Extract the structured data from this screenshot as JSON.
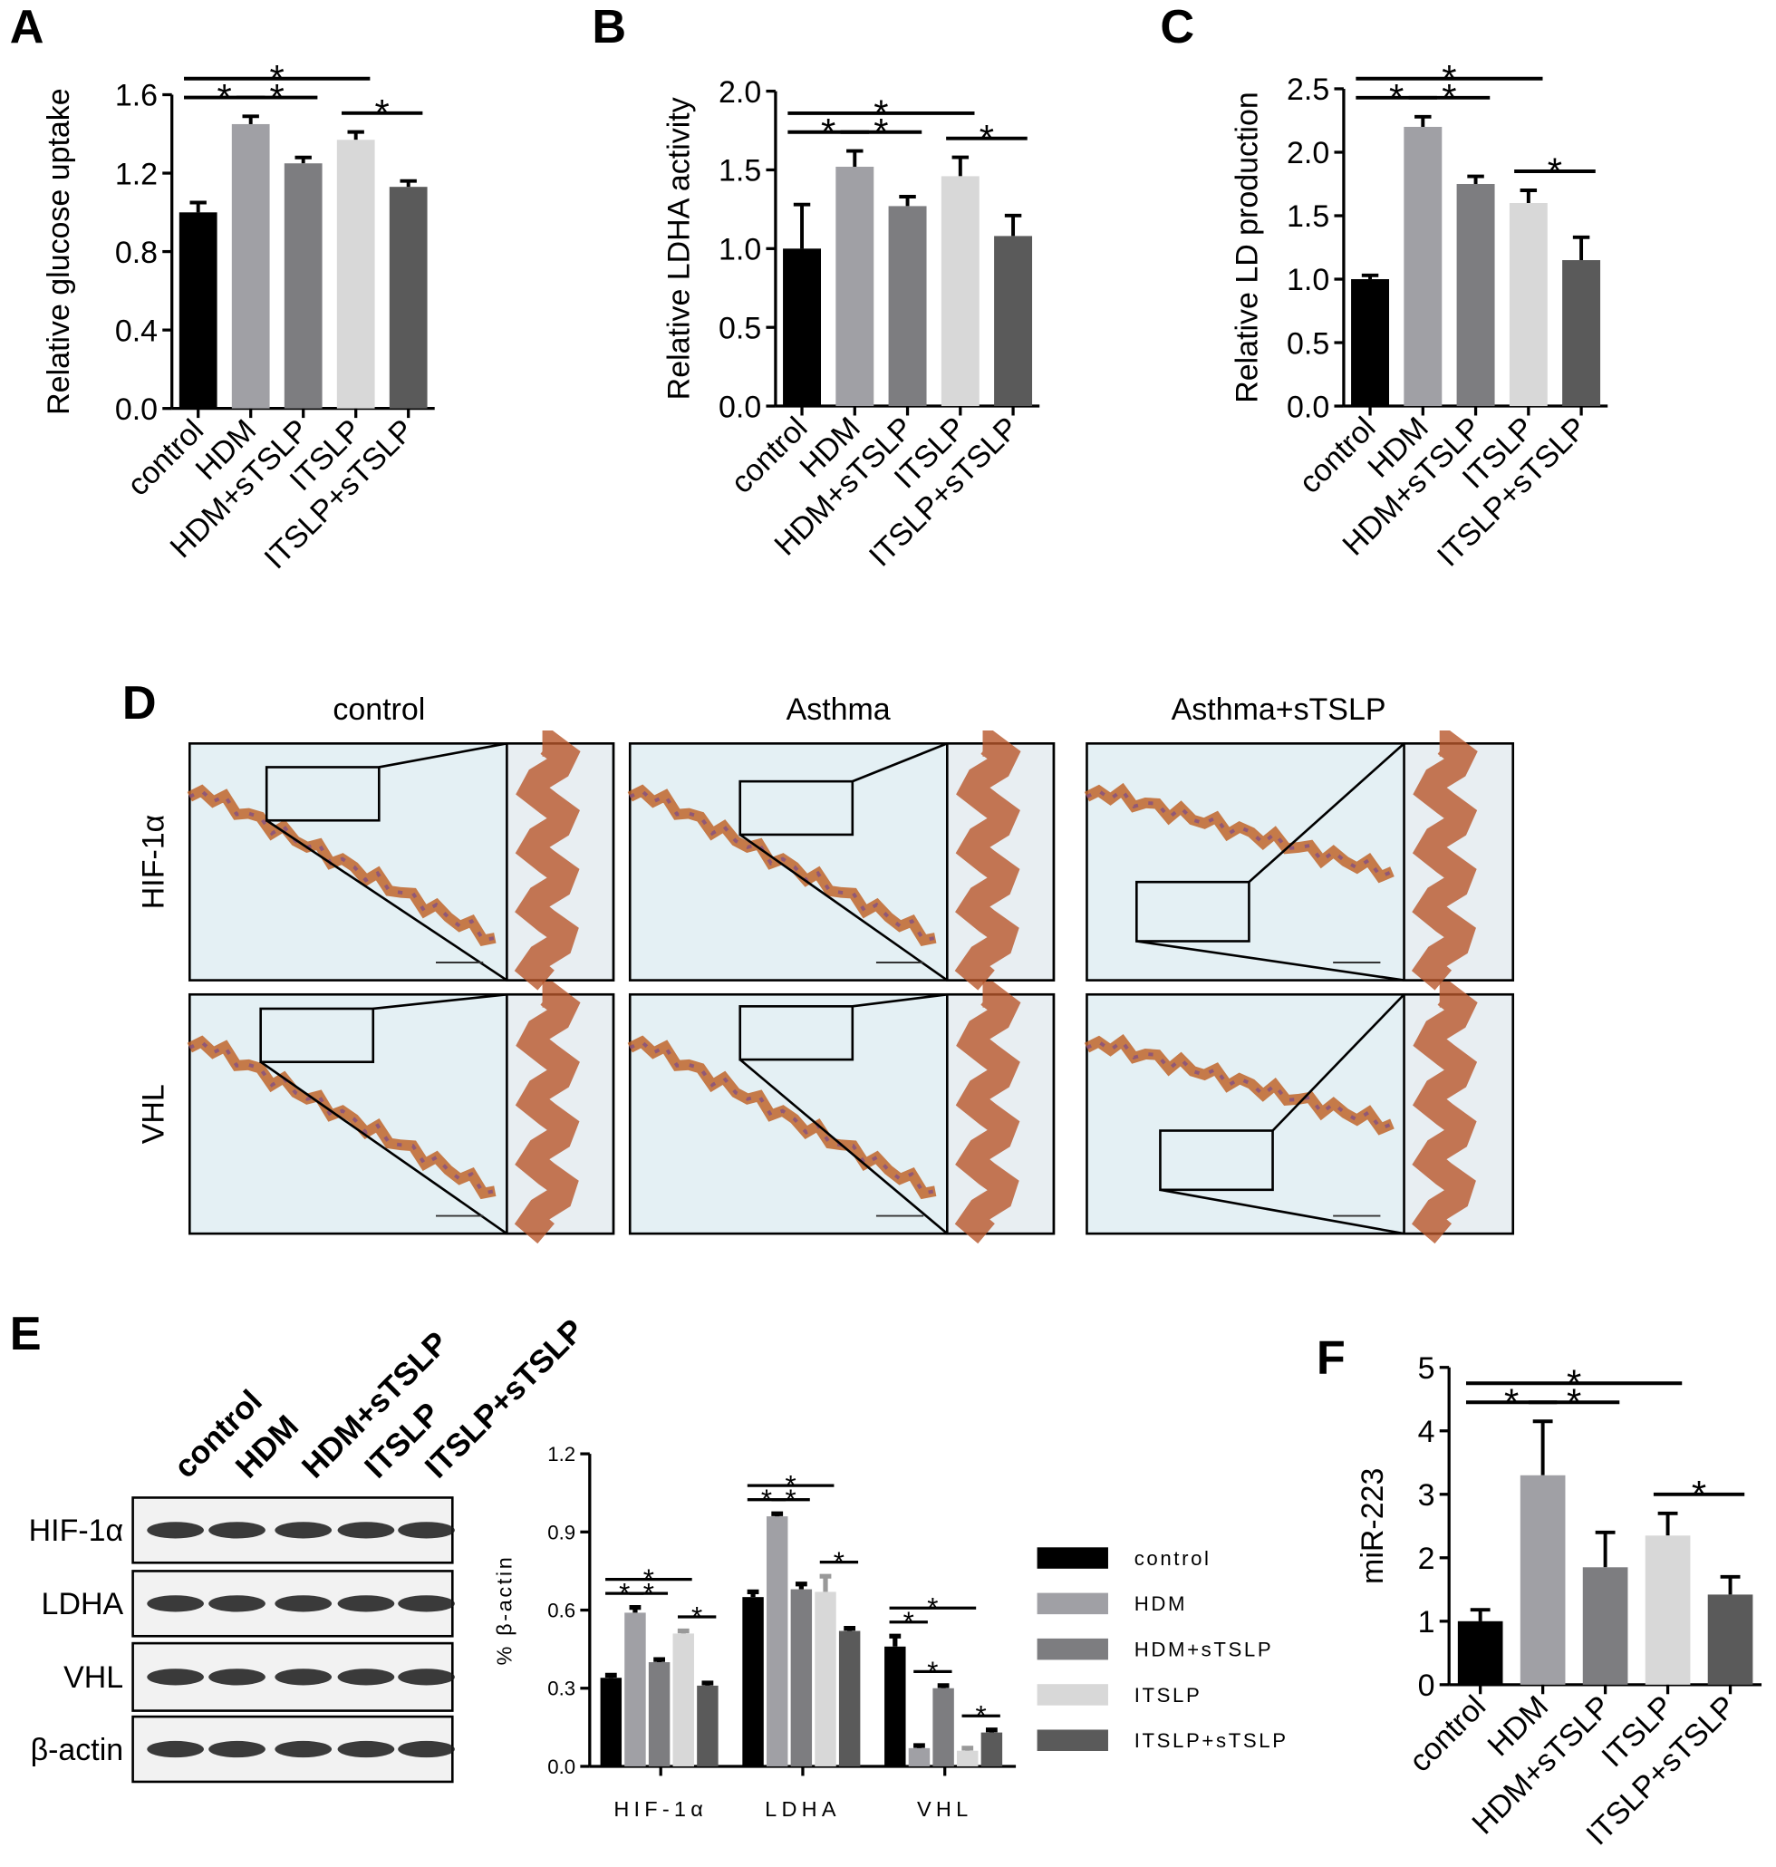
{
  "chart_data": [
    {
      "type": "bar",
      "panel": "A",
      "ylabel": "Relative glucose uptake",
      "categories": [
        "control",
        "HDM",
        "HDM+sTSLP",
        "ITSLP",
        "ITSLP+sTSLP"
      ],
      "values": [
        1.0,
        1.45,
        1.25,
        1.37,
        1.13
      ],
      "errors": [
        0.05,
        0.04,
        0.03,
        0.04,
        0.03
      ],
      "colors": [
        "#000000",
        "#a0a0a5",
        "#7d7d80",
        "#d8d8d8",
        "#5a5a5a"
      ],
      "ylim": [
        0,
        1.6
      ],
      "yticks": [
        {
          "value": 0,
          "label": "0.0"
        },
        {
          "value": 0.4,
          "label": "0.4"
        },
        {
          "value": 0.8,
          "label": "0.8"
        },
        {
          "value": 1.2,
          "label": "1.2"
        },
        {
          "value": 1.6,
          "label": "1.6"
        }
      ],
      "significance": [
        {
          "between": [
            "control",
            "HDM"
          ],
          "label": "*"
        },
        {
          "between": [
            "HDM",
            "HDM+sTSLP"
          ],
          "label": "*"
        },
        {
          "between": [
            "ITSLP",
            "ITSLP+sTSLP"
          ],
          "label": "*"
        },
        {
          "between": [
            "control",
            "ITSLP"
          ],
          "label": "*"
        }
      ]
    },
    {
      "type": "bar",
      "panel": "B",
      "ylabel": "Relative LDHA activity",
      "categories": [
        "control",
        "HDM",
        "HDM+sTSLP",
        "ITSLP",
        "ITSLP+sTSLP"
      ],
      "values": [
        1.0,
        1.52,
        1.27,
        1.46,
        1.08
      ],
      "errors": [
        0.28,
        0.1,
        0.06,
        0.12,
        0.13
      ],
      "colors": [
        "#000000",
        "#a0a0a5",
        "#7d7d80",
        "#d8d8d8",
        "#5a5a5a"
      ],
      "ylim": [
        0,
        2.0
      ],
      "yticks": [
        {
          "value": 0,
          "label": "0.0"
        },
        {
          "value": 0.5,
          "label": "0.5"
        },
        {
          "value": 1,
          "label": "1.0"
        },
        {
          "value": 1.5,
          "label": "1.5"
        },
        {
          "value": 2,
          "label": "2.0"
        }
      ],
      "significance": [
        {
          "between": [
            "control",
            "HDM"
          ],
          "label": "*"
        },
        {
          "between": [
            "HDM",
            "HDM+sTSLP"
          ],
          "label": "*"
        },
        {
          "between": [
            "ITSLP",
            "ITSLP+sTSLP"
          ],
          "label": "*"
        },
        {
          "between": [
            "control",
            "ITSLP"
          ],
          "label": "*"
        }
      ]
    },
    {
      "type": "bar",
      "panel": "C",
      "ylabel": "Relative LD production",
      "categories": [
        "control",
        "HDM",
        "HDM+sTSLP",
        "ITSLP",
        "ITSLP+sTSLP"
      ],
      "values": [
        1.0,
        2.2,
        1.75,
        1.6,
        1.15
      ],
      "errors": [
        0.03,
        0.08,
        0.06,
        0.1,
        0.18
      ],
      "colors": [
        "#000000",
        "#a0a0a5",
        "#7d7d80",
        "#d8d8d8",
        "#5a5a5a"
      ],
      "ylim": [
        0,
        2.5
      ],
      "yticks": [
        {
          "value": 0,
          "label": "0.0"
        },
        {
          "value": 0.5,
          "label": "0.5"
        },
        {
          "value": 1,
          "label": "1.0"
        },
        {
          "value": 1.5,
          "label": "1.5"
        },
        {
          "value": 2,
          "label": "2.0"
        },
        {
          "value": 2.5,
          "label": "2.5"
        }
      ],
      "significance": [
        {
          "between": [
            "control",
            "HDM"
          ],
          "label": "*"
        },
        {
          "between": [
            "HDM",
            "HDM+sTSLP"
          ],
          "label": "*"
        },
        {
          "between": [
            "ITSLP",
            "ITSLP+sTSLP"
          ],
          "label": "*"
        },
        {
          "between": [
            "control",
            "ITSLP"
          ],
          "label": "*"
        }
      ]
    },
    {
      "type": "bar",
      "ylabel": "% β-actin",
      "categories": [
        "HIF-1α",
        "LDHA",
        "VHL"
      ],
      "series": [
        {
          "name": "control",
          "color": "#000000",
          "values": [
            0.34,
            0.65,
            0.46
          ],
          "errors": [
            0.01,
            0.02,
            0.04
          ]
        },
        {
          "name": "HDM",
          "color": "#a0a0a5",
          "values": [
            0.59,
            0.96,
            0.07
          ],
          "errors": [
            0.02,
            0.01,
            0.01
          ]
        },
        {
          "name": "HDM+sTSLP",
          "color": "#7d7d80",
          "values": [
            0.4,
            0.68,
            0.3
          ],
          "errors": [
            0.01,
            0.02,
            0.01
          ]
        },
        {
          "name": "ITSLP",
          "color": "#d8d8d8",
          "values": [
            0.51,
            0.67,
            0.06
          ],
          "errors": [
            0.01,
            0.06,
            0.01
          ]
        },
        {
          "name": "ITSLP+sTSLP",
          "color": "#5a5a5a",
          "values": [
            0.31,
            0.52,
            0.13
          ],
          "errors": [
            0.01,
            0.01,
            0.01
          ]
        }
      ],
      "ylim": [
        0,
        1.2
      ],
      "yticks": [
        {
          "value": 0,
          "label": "0.0"
        },
        {
          "value": 0.3,
          "label": "0.3"
        },
        {
          "value": 0.6,
          "label": "0.6"
        },
        {
          "value": 0.9,
          "label": "0.9"
        },
        {
          "value": 1.2,
          "label": "1.2"
        }
      ],
      "legend": "right",
      "significance": [
        {
          "group": "HIF-1α",
          "between": [
            "control",
            "HDM"
          ],
          "label": "*"
        },
        {
          "group": "HIF-1α",
          "between": [
            "HDM",
            "HDM+sTSLP"
          ],
          "label": "*"
        },
        {
          "group": "HIF-1α",
          "between": [
            "ITSLP",
            "ITSLP+sTSLP"
          ],
          "label": "*"
        },
        {
          "group": "HIF-1α",
          "between": [
            "control",
            "ITSLP"
          ],
          "label": "*"
        },
        {
          "group": "LDHA",
          "between": [
            "control",
            "HDM"
          ],
          "label": "*"
        },
        {
          "group": "LDHA",
          "between": [
            "HDM",
            "HDM+sTSLP"
          ],
          "label": "*"
        },
        {
          "group": "LDHA",
          "between": [
            "ITSLP",
            "ITSLP+sTSLP"
          ],
          "label": "*"
        },
        {
          "group": "LDHA",
          "between": [
            "control",
            "ITSLP"
          ],
          "label": "*"
        },
        {
          "group": "VHL",
          "between": [
            "control",
            "HDM"
          ],
          "label": "*"
        },
        {
          "group": "VHL",
          "between": [
            "HDM",
            "HDM+sTSLP"
          ],
          "label": "*"
        },
        {
          "group": "VHL",
          "between": [
            "ITSLP",
            "ITSLP+sTSLP"
          ],
          "label": "*"
        },
        {
          "group": "VHL",
          "between": [
            "control",
            "ITSLP"
          ],
          "label": "*"
        }
      ]
    },
    {
      "type": "bar",
      "panel": "F",
      "ylabel": "miR-223",
      "categories": [
        "control",
        "HDM",
        "HDM+sTSLP",
        "ITSLP",
        "ITSLP+sTSLP"
      ],
      "values": [
        1.0,
        3.3,
        1.85,
        2.35,
        1.42
      ],
      "errors": [
        0.18,
        0.85,
        0.55,
        0.35,
        0.28
      ],
      "colors": [
        "#000000",
        "#a0a0a5",
        "#7d7d80",
        "#d8d8d8",
        "#5a5a5a"
      ],
      "ylim": [
        0,
        5
      ],
      "yticks": [
        0,
        1,
        2,
        3,
        4,
        5
      ],
      "significance": [
        {
          "between": [
            "control",
            "HDM"
          ],
          "label": "*"
        },
        {
          "between": [
            "HDM",
            "HDM+sTSLP"
          ],
          "label": "*"
        },
        {
          "between": [
            "ITSLP",
            "ITSLP+sTSLP"
          ],
          "label": "*"
        },
        {
          "between": [
            "control",
            "ITSLP"
          ],
          "label": "*"
        }
      ]
    }
  ],
  "histology": {
    "panel": "D",
    "columns": [
      "control",
      "Asthma",
      "Asthma+sTSLP"
    ],
    "rows": [
      "HIF-1α",
      "VHL"
    ]
  },
  "blot": {
    "panel": "E",
    "lanes": [
      "control",
      "HDM",
      "HDM+sTSLP",
      "ITSLP",
      "ITSLP+sTSLP"
    ],
    "rows": [
      "HIF-1α",
      "LDHA",
      "VHL",
      "β-actin"
    ]
  }
}
